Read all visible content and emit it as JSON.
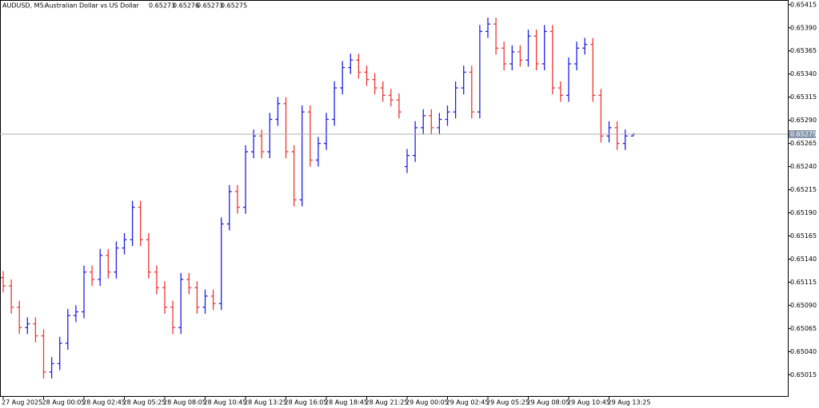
{
  "chart_data": {
    "type": "candlestick",
    "title": "AUDUSD, M5:",
    "subtitle": "Australian Dollar vs US Dollar",
    "up_color": "#1f1fe6",
    "down_color": "#f03535",
    "ylim": [
      0.64992,
      0.6542
    ],
    "yticks": [
      0.65415,
      {
        "value": 0.6539,
        "label": "0.65390"
      },
      0.65365,
      {
        "value": 0.6534,
        "label": "0.65340"
      },
      0.65315,
      {
        "value": 0.6529,
        "label": "0.65290"
      },
      0.65265,
      {
        "value": 0.6524,
        "label": "0.65240"
      },
      0.65215,
      {
        "value": 0.6519,
        "label": "0.65190"
      },
      0.65165,
      {
        "value": 0.6514,
        "label": "0.65140"
      },
      0.65115,
      {
        "value": 0.6509,
        "label": "0.65090"
      },
      0.65065,
      {
        "value": 0.6504,
        "label": "0.65040"
      },
      0.65015
    ],
    "categories": [
      "27 Aug 2025",
      null,
      null,
      null,
      null,
      "28 Aug 00:05",
      null,
      null,
      null,
      null,
      "28 Aug 02:45",
      null,
      null,
      null,
      null,
      "28 Aug 05:25",
      null,
      null,
      null,
      null,
      "28 Aug 08:05",
      null,
      null,
      null,
      null,
      "28 Aug 10:45",
      null,
      null,
      null,
      null,
      "28 Aug 13:25",
      null,
      null,
      null,
      null,
      "28 Aug 16:05",
      null,
      null,
      null,
      null,
      "28 Aug 18:45",
      null,
      null,
      null,
      null,
      "28 Aug 21:25",
      null,
      null,
      null,
      null,
      "29 Aug 00:05",
      null,
      null,
      null,
      null,
      "29 Aug 02:45",
      null,
      null,
      null,
      null,
      "29 Aug 05:25",
      null,
      null,
      null,
      null,
      "29 Aug 08:05",
      null,
      null,
      null,
      null,
      "29 Aug 10:45",
      null,
      null,
      null,
      null,
      "29 Aug 13:25",
      null,
      null,
      null
    ],
    "open": [
      0.6512,
      0.65111,
      0.65088,
      0.65066,
      0.6507,
      0.65057,
      0.65018,
      0.65027,
      0.65049,
      0.65079,
      0.65083,
      0.65126,
      0.65118,
      0.65144,
      0.65126,
      0.65152,
      0.65161,
      0.65196,
      0.65161,
      0.65126,
      0.65109,
      0.65088,
      0.65066,
      0.65118,
      0.65109,
      0.65088,
      0.651,
      0.65092,
      0.65178,
      0.65213,
      0.65196,
      0.65256,
      0.65273,
      0.65256,
      0.65291,
      0.65308,
      0.65256,
      0.65204,
      0.65299,
      0.65247,
      0.65265,
      0.65291,
      0.65325,
      0.65347,
      0.65355,
      0.65342,
      0.65334,
      0.65325,
      0.65317,
      0.65312,
      0.6524,
      0.65252,
      0.65282,
      0.65295,
      0.65282,
      0.65291,
      0.65299,
      0.65325,
      0.65342,
      0.65299,
      0.65386,
      0.65394,
      0.65368,
      0.65351,
      0.65364,
      0.65355,
      0.65381,
      0.65351,
      0.65386,
      0.65325,
      0.65317,
      0.65351,
      0.65368,
      0.65372,
      0.65317,
      0.65273,
      0.65282,
      0.65265,
      0.65273
    ],
    "high": [
      0.65127,
      0.65118,
      0.65095,
      0.65077,
      0.65077,
      0.65064,
      0.65034,
      0.65056,
      0.65086,
      0.6509,
      0.65133,
      0.65133,
      0.65151,
      0.65151,
      0.65159,
      0.65168,
      0.65203,
      0.65203,
      0.65168,
      0.65133,
      0.65116,
      0.65095,
      0.65125,
      0.65125,
      0.65116,
      0.65107,
      0.65107,
      0.65185,
      0.6522,
      0.6522,
      0.65263,
      0.6528,
      0.6528,
      0.65298,
      0.65315,
      0.65315,
      0.65263,
      0.65306,
      0.65306,
      0.65272,
      0.65298,
      0.65332,
      0.65354,
      0.65362,
      0.65362,
      0.65349,
      0.65341,
      0.65332,
      0.65324,
      0.65319,
      0.65259,
      0.65289,
      0.65302,
      0.65302,
      0.65298,
      0.65306,
      0.65332,
      0.65349,
      0.65349,
      0.65393,
      0.65401,
      0.65401,
      0.65375,
      0.65371,
      0.65371,
      0.65388,
      0.65388,
      0.65393,
      0.65393,
      0.65332,
      0.65358,
      0.65375,
      0.65379,
      0.65379,
      0.65324,
      0.65289,
      0.65289,
      0.6528,
      0.65276
    ],
    "low": [
      0.65104,
      0.65081,
      0.65059,
      0.65059,
      0.6505,
      0.65011,
      0.65011,
      0.6502,
      0.65042,
      0.65072,
      0.65076,
      0.65111,
      0.65111,
      0.65119,
      0.65119,
      0.65145,
      0.65154,
      0.65154,
      0.65119,
      0.65102,
      0.65081,
      0.65059,
      0.65059,
      0.65102,
      0.65081,
      0.65081,
      0.65085,
      0.65085,
      0.65171,
      0.65189,
      0.65189,
      0.65249,
      0.65249,
      0.65249,
      0.65284,
      0.65249,
      0.65197,
      0.65197,
      0.6524,
      0.6524,
      0.65258,
      0.65284,
      0.65318,
      0.6534,
      0.65335,
      0.65327,
      0.65318,
      0.6531,
      0.65305,
      0.65292,
      0.65233,
      0.65245,
      0.65275,
      0.65275,
      0.65275,
      0.65284,
      0.65292,
      0.65318,
      0.65292,
      0.65292,
      0.65379,
      0.65361,
      0.65344,
      0.65344,
      0.65348,
      0.65348,
      0.65344,
      0.65344,
      0.65318,
      0.6531,
      0.6531,
      0.65344,
      0.65361,
      0.6531,
      0.65266,
      0.65266,
      0.65258,
      0.65258,
      0.65273
    ],
    "close": [
      0.65111,
      0.65088,
      0.65066,
      0.6507,
      0.65057,
      0.65018,
      0.65027,
      0.65049,
      0.65079,
      0.65083,
      0.65126,
      0.65118,
      0.65144,
      0.65126,
      0.65152,
      0.65161,
      0.65196,
      0.65161,
      0.65126,
      0.65109,
      0.65088,
      0.65066,
      0.65118,
      0.65109,
      0.65088,
      0.651,
      0.65092,
      0.65178,
      0.65213,
      0.65196,
      0.65256,
      0.65273,
      0.65256,
      0.65291,
      0.65308,
      0.65256,
      0.65204,
      0.65299,
      0.65247,
      0.65265,
      0.65291,
      0.65325,
      0.65347,
      0.65355,
      0.65342,
      0.65334,
      0.65325,
      0.65317,
      0.65312,
      0.65299,
      0.65252,
      0.65282,
      0.65295,
      0.65282,
      0.65291,
      0.65299,
      0.65325,
      0.65342,
      0.65299,
      0.65386,
      0.65394,
      0.65368,
      0.65351,
      0.65364,
      0.65355,
      0.65381,
      0.65351,
      0.65386,
      0.65325,
      0.65317,
      0.65351,
      0.65368,
      0.65372,
      0.65317,
      0.65273,
      0.65282,
      0.65265,
      0.65273,
      0.65275
    ]
  }
}
